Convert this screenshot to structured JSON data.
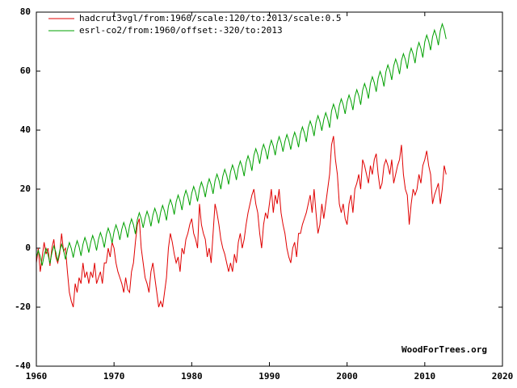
{
  "chart_data": {
    "type": "line",
    "annotation": "WoodForTrees.org",
    "xlim": [
      1960,
      2020
    ],
    "xticks": [
      1960,
      1970,
      1980,
      1990,
      2000,
      2010,
      2020
    ],
    "ylim": [
      -40,
      80
    ],
    "yticks": [
      -40,
      -20,
      0,
      20,
      40,
      60,
      80
    ],
    "grid": false,
    "legend": "top-left",
    "x": [
      1960,
      1960.25,
      1960.5,
      1960.75,
      1961,
      1961.25,
      1961.5,
      1961.75,
      1962,
      1962.25,
      1962.5,
      1962.75,
      1963,
      1963.25,
      1963.5,
      1963.75,
      1964,
      1964.25,
      1964.5,
      1964.75,
      1965,
      1965.25,
      1965.5,
      1965.75,
      1966,
      1966.25,
      1966.5,
      1966.75,
      1967,
      1967.25,
      1967.5,
      1967.75,
      1968,
      1968.25,
      1968.5,
      1968.75,
      1969,
      1969.25,
      1969.5,
      1969.75,
      1970,
      1970.25,
      1970.5,
      1970.75,
      1971,
      1971.25,
      1971.5,
      1971.75,
      1972,
      1972.25,
      1972.5,
      1972.75,
      1973,
      1973.25,
      1973.5,
      1973.75,
      1974,
      1974.25,
      1974.5,
      1974.75,
      1975,
      1975.25,
      1975.5,
      1975.75,
      1976,
      1976.25,
      1976.5,
      1976.75,
      1977,
      1977.25,
      1977.5,
      1977.75,
      1978,
      1978.25,
      1978.5,
      1978.75,
      1979,
      1979.25,
      1979.5,
      1979.75,
      1980,
      1980.25,
      1980.5,
      1980.75,
      1981,
      1981.25,
      1981.5,
      1981.75,
      1982,
      1982.25,
      1982.5,
      1982.75,
      1983,
      1983.25,
      1983.5,
      1983.75,
      1984,
      1984.25,
      1984.5,
      1984.75,
      1985,
      1985.25,
      1985.5,
      1985.75,
      1986,
      1986.25,
      1986.5,
      1986.75,
      1987,
      1987.25,
      1987.5,
      1987.75,
      1988,
      1988.25,
      1988.5,
      1988.75,
      1989,
      1989.25,
      1989.5,
      1989.75,
      1990,
      1990.25,
      1990.5,
      1990.75,
      1991,
      1991.25,
      1991.5,
      1991.75,
      1992,
      1992.25,
      1992.5,
      1992.75,
      1993,
      1993.25,
      1993.5,
      1993.75,
      1994,
      1994.25,
      1994.5,
      1994.75,
      1995,
      1995.25,
      1995.5,
      1995.75,
      1996,
      1996.25,
      1996.5,
      1996.75,
      1997,
      1997.25,
      1997.5,
      1997.75,
      1998,
      1998.25,
      1998.5,
      1998.75,
      1999,
      1999.25,
      1999.5,
      1999.75,
      2000,
      2000.25,
      2000.5,
      2000.75,
      2001,
      2001.25,
      2001.5,
      2001.75,
      2002,
      2002.25,
      2002.5,
      2002.75,
      2003,
      2003.25,
      2003.5,
      2003.75,
      2004,
      2004.25,
      2004.5,
      2004.75,
      2005,
      2005.25,
      2005.5,
      2005.75,
      2006,
      2006.25,
      2006.5,
      2006.75,
      2007,
      2007.25,
      2007.5,
      2007.75,
      2008,
      2008.25,
      2008.5,
      2008.75,
      2009,
      2009.25,
      2009.5,
      2009.75,
      2010,
      2010.25,
      2010.5,
      2010.75,
      2011,
      2011.25,
      2011.5,
      2011.75,
      2012,
      2012.25,
      2012.5,
      2012.75
    ],
    "series": [
      {
        "name": "hadcrut3vgl/from:1960/scale:120/to:2013/scale:0.5",
        "color": "#e00000",
        "values": [
          -5,
          0,
          -8,
          -3,
          2,
          -2,
          0,
          -6,
          0,
          3,
          -3,
          -5,
          -2,
          5,
          -1,
          0,
          -8,
          -15,
          -18,
          -20,
          -12,
          -15,
          -10,
          -12,
          -5,
          -10,
          -8,
          -12,
          -8,
          -10,
          -5,
          -12,
          -10,
          -8,
          -12,
          -5,
          -5,
          0,
          -3,
          2,
          0,
          -5,
          -8,
          -10,
          -12,
          -15,
          -10,
          -14,
          -15,
          -8,
          -5,
          2,
          8,
          10,
          0,
          -5,
          -10,
          -12,
          -15,
          -8,
          -5,
          -10,
          -15,
          -20,
          -18,
          -20,
          -15,
          -10,
          0,
          5,
          2,
          -2,
          -5,
          -3,
          -8,
          0,
          -2,
          3,
          5,
          8,
          10,
          5,
          3,
          0,
          15,
          8,
          5,
          3,
          -3,
          0,
          -5,
          5,
          15,
          12,
          8,
          3,
          0,
          -2,
          -5,
          -8,
          -5,
          -8,
          -2,
          -5,
          2,
          5,
          0,
          3,
          8,
          12,
          15,
          18,
          20,
          15,
          12,
          5,
          0,
          8,
          12,
          10,
          15,
          20,
          12,
          18,
          15,
          20,
          12,
          8,
          5,
          0,
          -3,
          -5,
          0,
          2,
          -3,
          5,
          5,
          8,
          10,
          12,
          15,
          18,
          12,
          20,
          12,
          5,
          8,
          15,
          10,
          15,
          20,
          25,
          35,
          38,
          30,
          25,
          15,
          12,
          15,
          10,
          8,
          15,
          18,
          12,
          20,
          22,
          25,
          20,
          30,
          28,
          25,
          22,
          28,
          25,
          30,
          32,
          25,
          20,
          22,
          28,
          30,
          28,
          25,
          30,
          22,
          25,
          28,
          30,
          35,
          25,
          20,
          18,
          8,
          15,
          20,
          18,
          20,
          25,
          22,
          28,
          30,
          33,
          28,
          25,
          15,
          18,
          20,
          22,
          15,
          20,
          28,
          25
        ]
      },
      {
        "name": "esrl-co2/from:1960/offset:-320/to:2013",
        "color": "#00a000",
        "values": [
          -3.1,
          -0.8,
          -2.8,
          -5.9,
          -2.4,
          -0.1,
          -2.1,
          -5.2,
          -1.6,
          0.7,
          -1.3,
          -4.4,
          -1.0,
          1.3,
          -0.7,
          -3.8,
          -0.4,
          1.9,
          -0.1,
          -3.2,
          0.2,
          2.5,
          0.5,
          -2.6,
          1.3,
          3.6,
          1.6,
          -1.5,
          2.0,
          4.3,
          2.3,
          -0.8,
          3.0,
          5.3,
          3.3,
          0.2,
          4.5,
          6.8,
          4.8,
          1.7,
          5.6,
          7.9,
          5.9,
          2.8,
          6.4,
          8.7,
          6.7,
          3.6,
          7.6,
          9.9,
          7.9,
          4.8,
          9.7,
          12.0,
          10.0,
          6.9,
          10.2,
          12.5,
          10.5,
          7.4,
          11.2,
          13.5,
          11.5,
          8.4,
          12.2,
          14.5,
          12.5,
          9.4,
          14.2,
          16.5,
          14.5,
          11.4,
          15.7,
          18.0,
          16.0,
          12.9,
          17.3,
          19.6,
          17.6,
          14.5,
          18.6,
          20.9,
          18.9,
          15.8,
          20.1,
          22.4,
          20.4,
          17.3,
          21.2,
          23.5,
          21.5,
          18.4,
          22.8,
          25.1,
          23.1,
          20.0,
          24.4,
          26.7,
          24.7,
          21.6,
          25.9,
          28.2,
          26.2,
          23.1,
          27.2,
          29.5,
          27.5,
          24.4,
          29.0,
          31.3,
          29.3,
          26.2,
          31.4,
          33.7,
          31.7,
          28.6,
          32.9,
          35.2,
          33.2,
          30.1,
          34.3,
          36.6,
          34.6,
          31.5,
          35.5,
          37.8,
          35.8,
          32.7,
          36.2,
          38.5,
          36.5,
          33.4,
          37.0,
          39.3,
          37.3,
          34.2,
          38.8,
          41.1,
          39.1,
          36.0,
          40.8,
          43.1,
          41.1,
          38.0,
          42.6,
          44.9,
          42.9,
          39.8,
          43.6,
          45.9,
          43.9,
          40.8,
          46.5,
          48.8,
          46.8,
          43.7,
          48.3,
          50.6,
          48.6,
          45.5,
          49.6,
          51.9,
          49.9,
          46.8,
          51.4,
          53.7,
          51.7,
          48.6,
          53.5,
          55.8,
          53.8,
          50.7,
          55.8,
          58.1,
          56.1,
          53.0,
          57.6,
          59.9,
          57.9,
          54.8,
          59.8,
          62.1,
          60.1,
          57.0,
          61.8,
          64.1,
          62.1,
          59.0,
          63.6,
          65.9,
          63.9,
          60.8,
          65.5,
          67.8,
          65.8,
          62.7,
          67.4,
          69.7,
          67.7,
          64.6,
          69.9,
          72.2,
          70.2,
          67.1,
          71.6,
          73.9,
          71.9,
          68.8,
          73.7,
          76.0,
          74.0,
          70.9
        ]
      }
    ]
  }
}
